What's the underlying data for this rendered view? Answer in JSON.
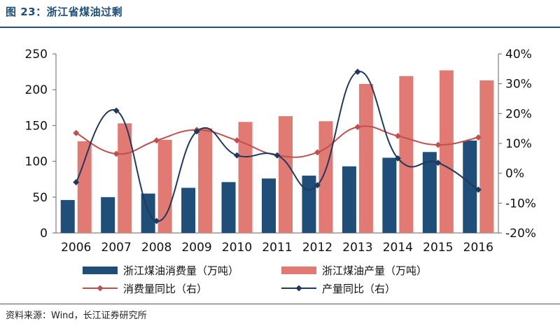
{
  "figure": {
    "title": "图 23：浙江省煤油过剩",
    "source": "资料来源：Wind，长江证券研究所"
  },
  "colors": {
    "consumption_bar": "#1f4e79",
    "production_bar": "#e07a72",
    "consumption_yoy": "#c0504d",
    "production_yoy": "#1f3a5f",
    "accent": "#1f4e79"
  },
  "chart_data": {
    "type": "bar",
    "categories": [
      "2006",
      "2007",
      "2008",
      "2009",
      "2010",
      "2011",
      "2012",
      "2013",
      "2014",
      "2015",
      "2016"
    ],
    "left_axis": {
      "ylim": [
        0,
        250
      ],
      "ticks": [
        "0",
        "50",
        "100",
        "150",
        "200",
        "250"
      ]
    },
    "right_axis": {
      "ylim": [
        -20,
        40
      ],
      "ticks": [
        "-20%",
        "-10%",
        "0%",
        "10%",
        "20%",
        "30%",
        "40%"
      ]
    },
    "series": [
      {
        "name": "浙江煤油消费量（万吨）",
        "kind": "bar",
        "axis": "left",
        "values": [
          46,
          50,
          55,
          63,
          71,
          76,
          80,
          93,
          105,
          113,
          129
        ]
      },
      {
        "name": "浙江煤油产量（万吨）",
        "kind": "bar",
        "axis": "left",
        "values": [
          128,
          153,
          130,
          146,
          155,
          163,
          156,
          208,
          219,
          227,
          213
        ]
      },
      {
        "name": "消费量同比（右）",
        "kind": "line",
        "axis": "right",
        "values": [
          13.5,
          6.5,
          11,
          14.5,
          11,
          6,
          7,
          15.5,
          12.5,
          9.5,
          12
        ]
      },
      {
        "name": "产量同比（右）",
        "kind": "line",
        "axis": "right",
        "values": [
          -3,
          21,
          -16,
          14,
          6,
          6,
          -4,
          34,
          5,
          3.5,
          -5.5
        ]
      }
    ],
    "legend_position": "bottom",
    "grid": false
  }
}
